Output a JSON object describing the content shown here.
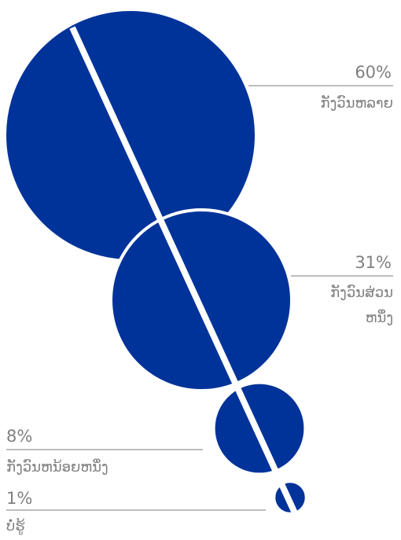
{
  "chart_data": {
    "type": "bubble-proportion",
    "title": "",
    "categories": [
      "ກັງວົນຫລາຍ",
      "ກັງວົນສ່ວນຫນຶ່ງ",
      "ກັງວົນຫນ້ອຍຫນຶ່ງ",
      "ບໍ່ຮູ້"
    ],
    "values": [
      60,
      31,
      8,
      1
    ],
    "unit": "%",
    "labels": [
      {
        "value": "60%",
        "lines": [
          "ກັງວົນຫລາຍ"
        ]
      },
      {
        "value": "31%",
        "lines": [
          "ກັງວົນສ່ວນ",
          "ຫນຶ່ງ"
        ]
      },
      {
        "value": "8%",
        "lines": [
          "ກັງວົນຫນ້ອຍຫນຶ່ງ"
        ]
      },
      {
        "value": "1%",
        "lines": [
          "ບໍ່ຮູ້"
        ]
      }
    ]
  },
  "colors": {
    "bubble": "#00339a",
    "divider": "#ffffff",
    "text": "#808080",
    "rule": "#bdbdbd"
  }
}
